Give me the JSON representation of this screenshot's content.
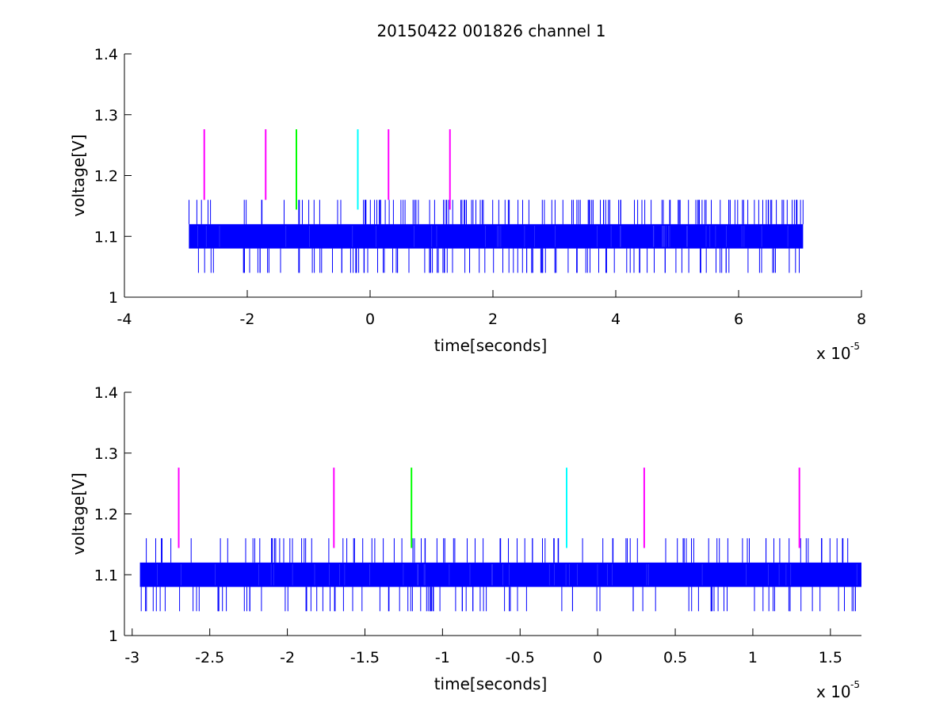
{
  "figure": {
    "title": "20150422 001826 channel 1"
  },
  "chart_data": [
    {
      "type": "line",
      "title": "20150422 001826 channel 1",
      "xlabel": "time[seconds]",
      "ylabel": "voltage[V]",
      "x_multiplier_text": "x 10",
      "x_multiplier_exp": "-5",
      "xlim": [
        -4,
        8
      ],
      "ylim": [
        1,
        1.4
      ],
      "xticks": [
        -4,
        -2,
        0,
        2,
        4,
        6,
        8
      ],
      "xtick_labels": [
        "-4",
        "-2",
        "0",
        "2",
        "4",
        "6",
        "8"
      ],
      "yticks": [
        1,
        1.1,
        1.2,
        1.3,
        1.4
      ],
      "ytick_labels": [
        "1",
        "1.1",
        "1.2",
        "1.3",
        "1.4"
      ],
      "grid": false,
      "signal": {
        "color": "#0000ff",
        "x_range": [
          -2.95,
          7.05
        ],
        "band": [
          1.08,
          1.12
        ],
        "spike_high": 1.16,
        "spike_low": 1.04,
        "spike_count": 260
      },
      "markers": [
        {
          "x": -2.7,
          "color": "#ff00ff",
          "y_range": [
            1.16,
            1.276
          ]
        },
        {
          "x": -1.7,
          "color": "#ff00ff",
          "y_range": [
            1.16,
            1.276
          ]
        },
        {
          "x": -1.2,
          "color": "#00ff00",
          "y_range": [
            1.144,
            1.276
          ]
        },
        {
          "x": -0.2,
          "color": "#00ffff",
          "y_range": [
            1.144,
            1.276
          ]
        },
        {
          "x": 0.3,
          "color": "#ff00ff",
          "y_range": [
            1.16,
            1.276
          ]
        },
        {
          "x": 1.3,
          "color": "#ff00ff",
          "y_range": [
            1.144,
            1.276
          ]
        }
      ]
    },
    {
      "type": "line",
      "title": "",
      "xlabel": "time[seconds]",
      "ylabel": "voltage[V]",
      "x_multiplier_text": "x 10",
      "x_multiplier_exp": "-5",
      "xlim": [
        -3.05,
        1.7
      ],
      "ylim": [
        1,
        1.4
      ],
      "xticks": [
        -3,
        -2.5,
        -2,
        -1.5,
        -1,
        -0.5,
        0,
        0.5,
        1,
        1.5
      ],
      "xtick_labels": [
        "-3",
        "-2.5",
        "-2",
        "-1.5",
        "-1",
        "-0.5",
        "0",
        "0.5",
        "1",
        "1.5"
      ],
      "yticks": [
        1,
        1.1,
        1.2,
        1.3,
        1.4
      ],
      "ytick_labels": [
        "1",
        "1.1",
        "1.2",
        "1.3",
        "1.4"
      ],
      "grid": false,
      "signal": {
        "color": "#0000ff",
        "x_range": [
          -2.95,
          1.7
        ],
        "band": [
          1.08,
          1.12
        ],
        "spike_high": 1.16,
        "spike_low": 1.04,
        "spike_count": 200
      },
      "markers": [
        {
          "x": -2.7,
          "color": "#ff00ff",
          "y_range": [
            1.144,
            1.276
          ]
        },
        {
          "x": -1.7,
          "color": "#ff00ff",
          "y_range": [
            1.144,
            1.276
          ]
        },
        {
          "x": -1.2,
          "color": "#00ff00",
          "y_range": [
            1.144,
            1.276
          ]
        },
        {
          "x": -0.2,
          "color": "#00ffff",
          "y_range": [
            1.144,
            1.276
          ]
        },
        {
          "x": 0.3,
          "color": "#ff00ff",
          "y_range": [
            1.144,
            1.276
          ]
        },
        {
          "x": 1.3,
          "color": "#ff00ff",
          "y_range": [
            1.144,
            1.276
          ]
        }
      ]
    }
  ]
}
